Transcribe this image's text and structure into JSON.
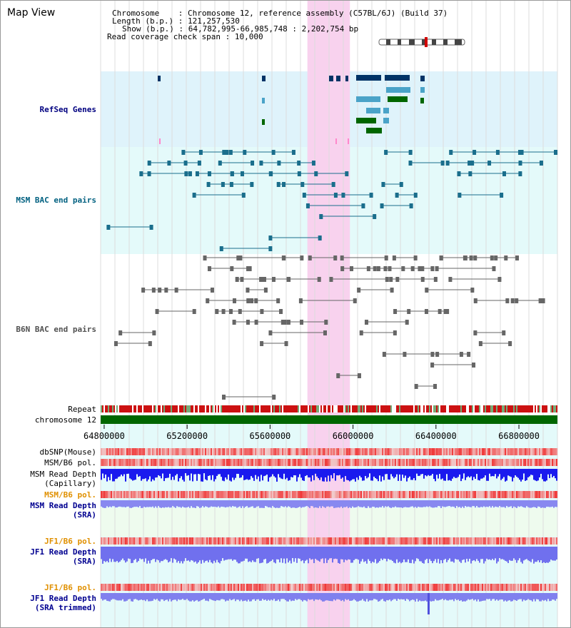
{
  "view": {
    "title": "Map View"
  },
  "info": {
    "chromosome_key": "Chromosome",
    "chromosome_value": "Chromosome 12, reference assembly (C57BL/6J) (Build 37)",
    "length_key": "Length (b.p.)",
    "length_value": "121,257,530",
    "show_key": "Show (b.p.)",
    "show_value": "64,782,995-66,985,748 : 2,202,754 bp",
    "span_key": "Read coverage check span",
    "span_value": "10,000"
  },
  "tracks": {
    "refseq": "RefSeq Genes",
    "msm_bac": "MSM BAC end pairs",
    "b6n_bac": "B6N BAC end pairs",
    "repeat": "Repeat",
    "chrom": "chromosome 12",
    "dbsnp": "dbSNP(Mouse)",
    "msm_b6_pol_1": "MSM/B6 pol.",
    "msm_depth_cap_1": "MSM Read Depth",
    "msm_depth_cap_2": "(Capillary)",
    "msm_b6_pol_2": "MSM/B6 pol.",
    "msm_depth_sra_1": "MSM Read Depth",
    "msm_depth_sra_2": "(SRA)",
    "jf1_b6_pol_1": "JF1/B6 pol.",
    "jf1_depth_sra_1": "JF1 Read Depth",
    "jf1_depth_sra_2": "(SRA)",
    "jf1_b6_pol_2": "JF1/B6 pol.",
    "jf1_depth_trim_1": "JF1 Read Depth",
    "jf1_depth_trim_2": "(SRA trimmed)"
  },
  "axis": {
    "ticks": [
      "64800000",
      "65200000",
      "65600000",
      "66000000",
      "66400000",
      "66800000"
    ],
    "tick_values": [
      64800000,
      65200000,
      65600000,
      66000000,
      66400000,
      66800000
    ],
    "range": [
      64782995,
      66985748
    ]
  },
  "highlight": {
    "start": 65780000,
    "end": 65985000
  },
  "colors": {
    "refseq_label": "#000080",
    "msm_label": "#006080",
    "b6n_label": "#505050",
    "pol_orange": "#e09000",
    "depth_blue": "#000090",
    "refseq_bg": "#dff3fb",
    "msm_bg": "#e4fafa",
    "highlight": "#f8d2ee",
    "chrom_green": "#006600",
    "gene_dark": "#003366",
    "gene_light": "#4aa3c8",
    "gene_green": "#006600",
    "bac_msm": "#1a6e8c",
    "bac_b6n": "#666666"
  }
}
